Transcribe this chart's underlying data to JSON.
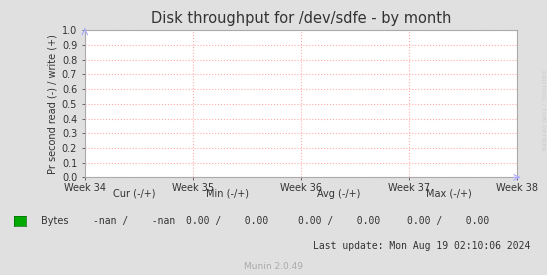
{
  "title": "Disk throughput for /dev/sdfe - by month",
  "ylabel": "Pr second read (-) / write (+)",
  "x_tick_labels": [
    "Week 34",
    "Week 35",
    "Week 36",
    "Week 37",
    "Week 38"
  ],
  "ylim": [
    0.0,
    1.0
  ],
  "yticks": [
    0.0,
    0.1,
    0.2,
    0.3,
    0.4,
    0.5,
    0.6,
    0.7,
    0.8,
    0.9,
    1.0
  ],
  "bg_color": "#e0e0e0",
  "plot_bg_color": "#ffffff",
  "grid_color": "#ffaaaa",
  "title_color": "#333333",
  "tick_color": "#333333",
  "spine_color": "#aaaaaa",
  "legend_label": "Bytes",
  "legend_color": "#00aa00",
  "cur_label": "Cur (-/+)",
  "min_label": "Min (-/+)",
  "avg_label": "Avg (-/+)",
  "max_label": "Max (-/+)",
  "cur_value": "-nan /    -nan",
  "min_value": "0.00 /    0.00",
  "avg_value": "0.00 /    0.00",
  "max_value": "0.00 /    0.00",
  "last_update": "Last update: Mon Aug 19 02:10:06 2024",
  "munin_version": "Munin 2.0.49",
  "right_label": "RRDTOOL / TOBI OETIKER",
  "arrow_color": "#aaaaff"
}
